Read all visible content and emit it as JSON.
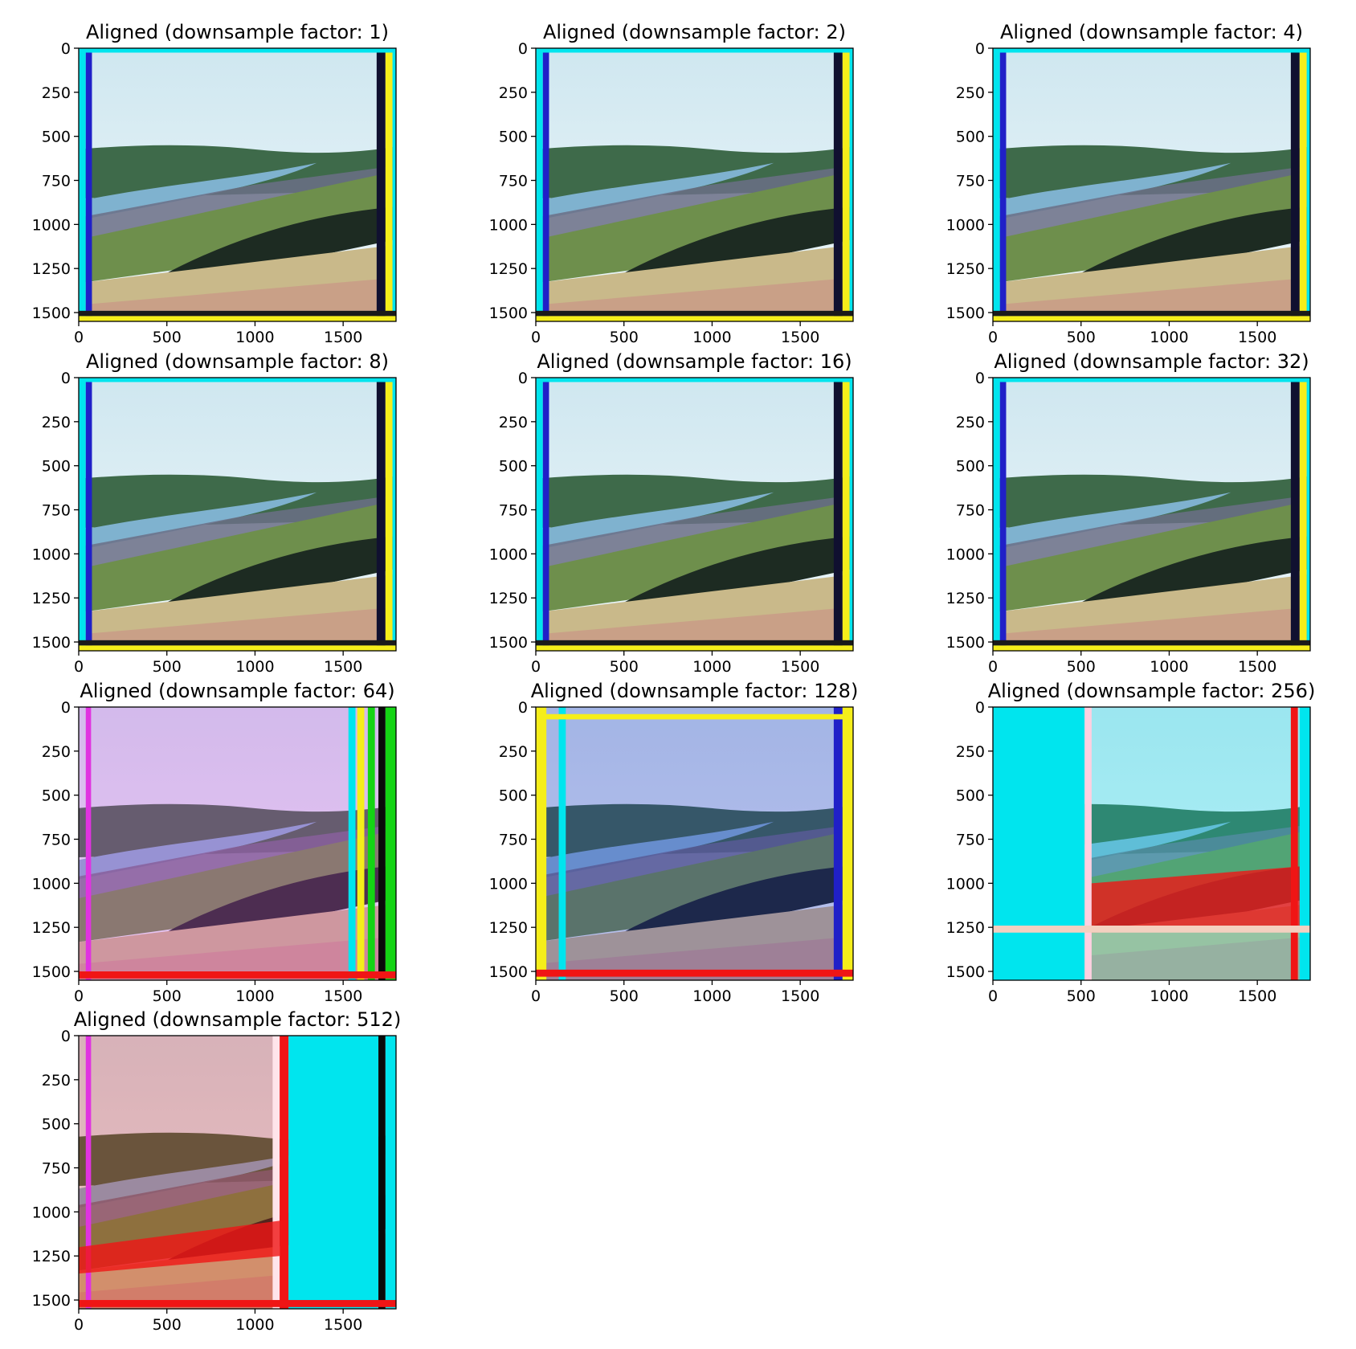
{
  "panels": [
    {
      "id": "p1",
      "title": "Aligned (downsample factor: 1)",
      "variant": "aligned"
    },
    {
      "id": "p2",
      "title": "Aligned (downsample factor: 2)",
      "variant": "aligned"
    },
    {
      "id": "p3",
      "title": "Aligned (downsample factor: 4)",
      "variant": "aligned"
    },
    {
      "id": "p4",
      "title": "Aligned (downsample factor: 8)",
      "variant": "aligned"
    },
    {
      "id": "p5",
      "title": "Aligned (downsample factor: 16)",
      "variant": "aligned"
    },
    {
      "id": "p6",
      "title": "Aligned (downsample factor: 32)",
      "variant": "aligned"
    },
    {
      "id": "p7",
      "title": "Aligned (downsample factor: 64)",
      "variant": "misaligned-64"
    },
    {
      "id": "p8",
      "title": "Aligned (downsample factor: 128)",
      "variant": "misaligned-128"
    },
    {
      "id": "p9",
      "title": "Aligned (downsample factor: 256)",
      "variant": "misaligned-256"
    },
    {
      "id": "p10",
      "title": "Aligned (downsample factor: 512)",
      "variant": "misaligned-512"
    }
  ],
  "axes": {
    "x_ticks": [
      "0",
      "500",
      "1000",
      "1500"
    ],
    "y_ticks": [
      "0",
      "250",
      "500",
      "750",
      "1000",
      "1250",
      "1500"
    ],
    "x_range": [
      0,
      1800
    ],
    "y_range": [
      0,
      1550
    ]
  },
  "colors": {
    "sky": "#dff0f5",
    "river": "#7fb2cf",
    "forest": "#3e6a4a",
    "hill": "#6e8f4c",
    "dark_field": "#1d2b22",
    "dry_grass": "#c9b98a",
    "cyan": "#00e5ee",
    "yellow": "#f5ee1a",
    "magenta": "#e033e0",
    "red": "#f01515",
    "green": "#14d414",
    "blue": "#2020c8"
  }
}
